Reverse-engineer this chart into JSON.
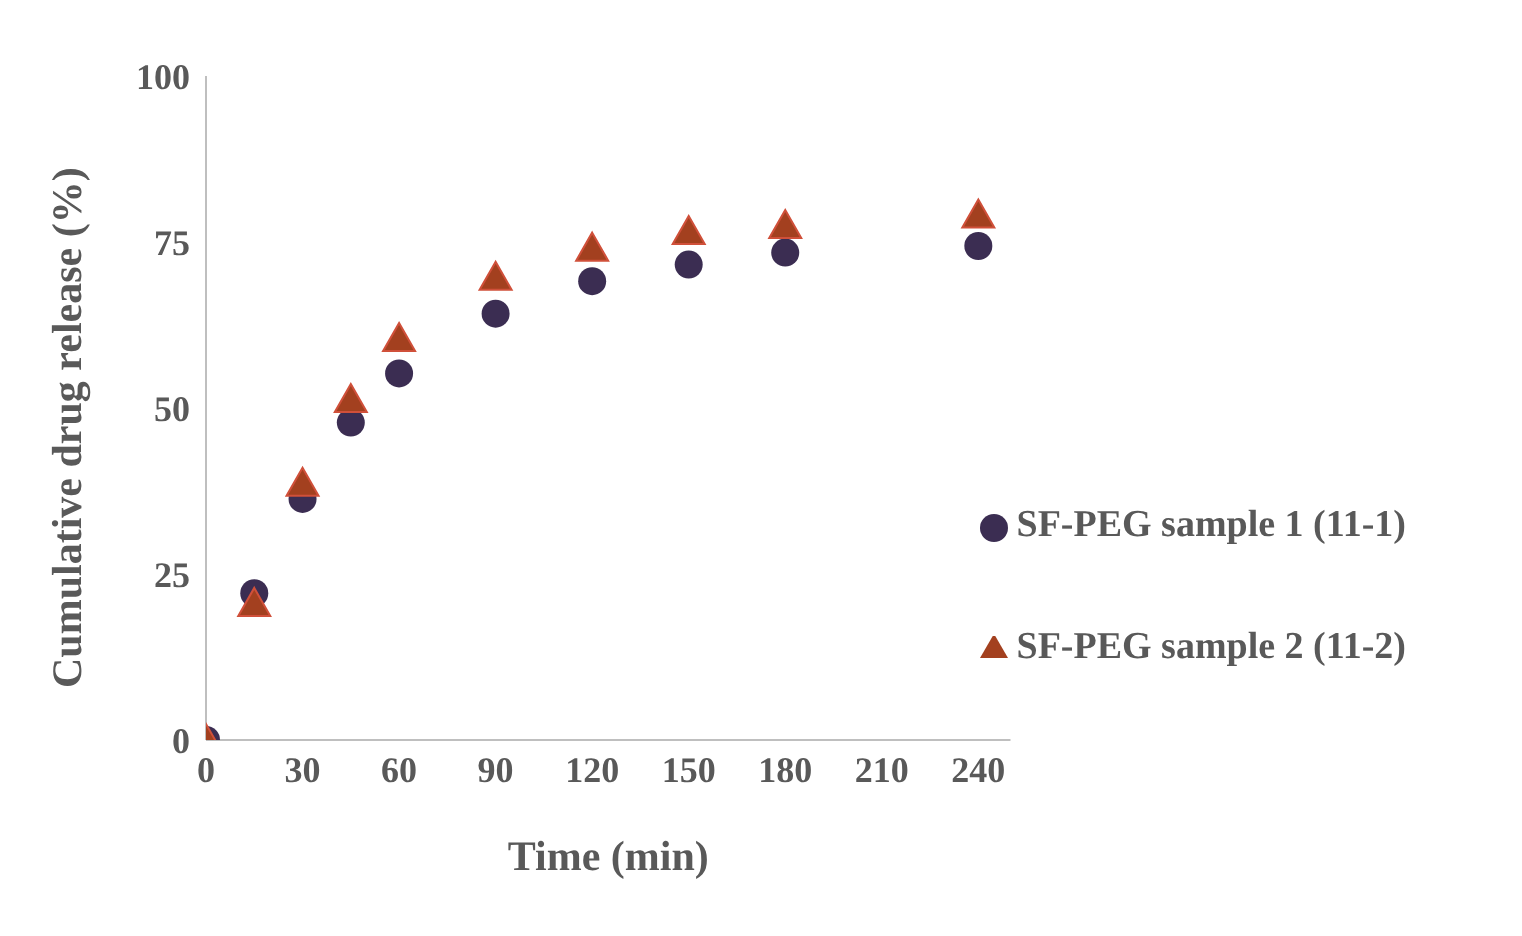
{
  "chart_data": {
    "type": "scatter",
    "xlabel": "Time (min)",
    "ylabel": "Cumulative drug release (%)",
    "x": [
      0,
      15,
      30,
      45,
      60,
      90,
      120,
      150,
      180,
      240
    ],
    "series": [
      {
        "name": "SF-PEG sample 1 (11-1)",
        "color": "#3b2d52",
        "marker": "circle",
        "values": [
          0,
          22.1,
          36.3,
          47.8,
          55.2,
          64.2,
          69.1,
          71.6,
          73.4,
          74.4
        ]
      },
      {
        "name": "SF-PEG sample 2 (11-2)",
        "color": "#a3401f",
        "marker": "triangle",
        "values": [
          0,
          20.5,
          38.6,
          51.2,
          60.4,
          69.6,
          74.0,
          76.5,
          77.4,
          79.0
        ]
      }
    ],
    "xlim": [
      0,
      250
    ],
    "xticks": [
      0,
      30,
      60,
      90,
      120,
      150,
      180,
      210,
      240
    ],
    "ylim": [
      0,
      100
    ],
    "yticks": [
      0,
      25,
      50,
      75,
      100
    ],
    "grid": false,
    "legend": "right"
  }
}
